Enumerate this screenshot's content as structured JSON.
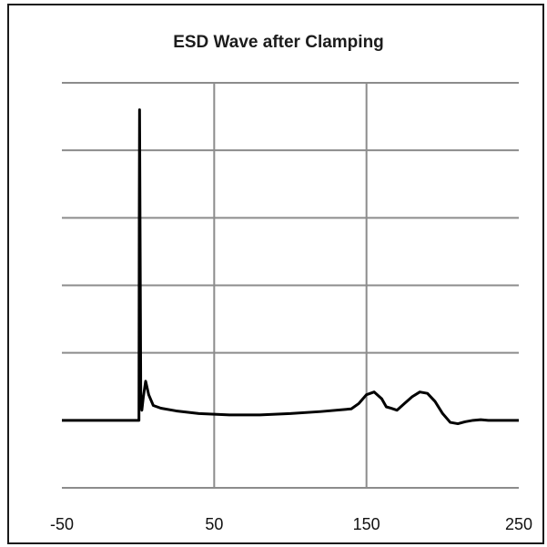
{
  "chart_data": {
    "type": "line",
    "title": "ESD Wave after Clamping",
    "xlabel": "",
    "ylabel": "",
    "xlim": [
      -50,
      250
    ],
    "ylim": [
      -1,
      5
    ],
    "x_ticks": [
      -50,
      50,
      150,
      250
    ],
    "x_tick_labels": [
      "-50",
      "50",
      "150",
      "250"
    ],
    "x_gridlines": [
      50,
      150
    ],
    "y_gridlines": [
      -1,
      0,
      1,
      2,
      3,
      4,
      5
    ],
    "grid": true,
    "legend": "none",
    "line_color": "#000000",
    "grid_color": "#8c8c8c",
    "series": [
      {
        "x": [
          -50,
          -10,
          0.6,
          0.8,
          1.0,
          1.4,
          1.8,
          2.5,
          3.5,
          5,
          7,
          10,
          15,
          25,
          40,
          60,
          80,
          100,
          120,
          140,
          145,
          150,
          155,
          160,
          163,
          166,
          170,
          175,
          180,
          185,
          190,
          195,
          200,
          205,
          210,
          215,
          220,
          225,
          230,
          235,
          240,
          245,
          250
        ],
        "y": [
          0,
          0,
          0,
          3,
          4.6,
          2.5,
          0.3,
          0.15,
          0.35,
          0.58,
          0.38,
          0.22,
          0.18,
          0.14,
          0.1,
          0.08,
          0.08,
          0.1,
          0.13,
          0.17,
          0.25,
          0.38,
          0.42,
          0.32,
          0.2,
          0.18,
          0.15,
          0.25,
          0.35,
          0.42,
          0.4,
          0.28,
          0.1,
          -0.03,
          -0.05,
          -0.02,
          0.0,
          0.01,
          0.0,
          0.0,
          0.0,
          0.0,
          0.0
        ]
      }
    ]
  }
}
